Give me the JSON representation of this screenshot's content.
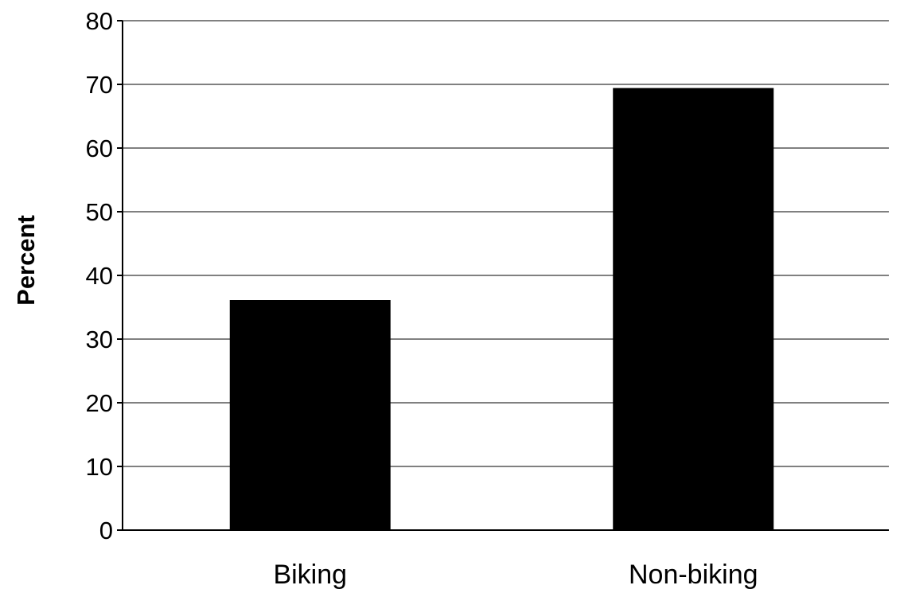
{
  "chart_data": {
    "type": "bar",
    "categories": [
      "Biking",
      "Non-biking"
    ],
    "values": [
      36,
      69.3
    ],
    "title": "",
    "xlabel": "",
    "ylabel": "Percent",
    "ylim": [
      0,
      80
    ],
    "yticks": [
      0,
      10,
      20,
      30,
      40,
      50,
      60,
      70,
      80
    ],
    "grid": true,
    "legend": "none",
    "bar_color": "#000000"
  }
}
